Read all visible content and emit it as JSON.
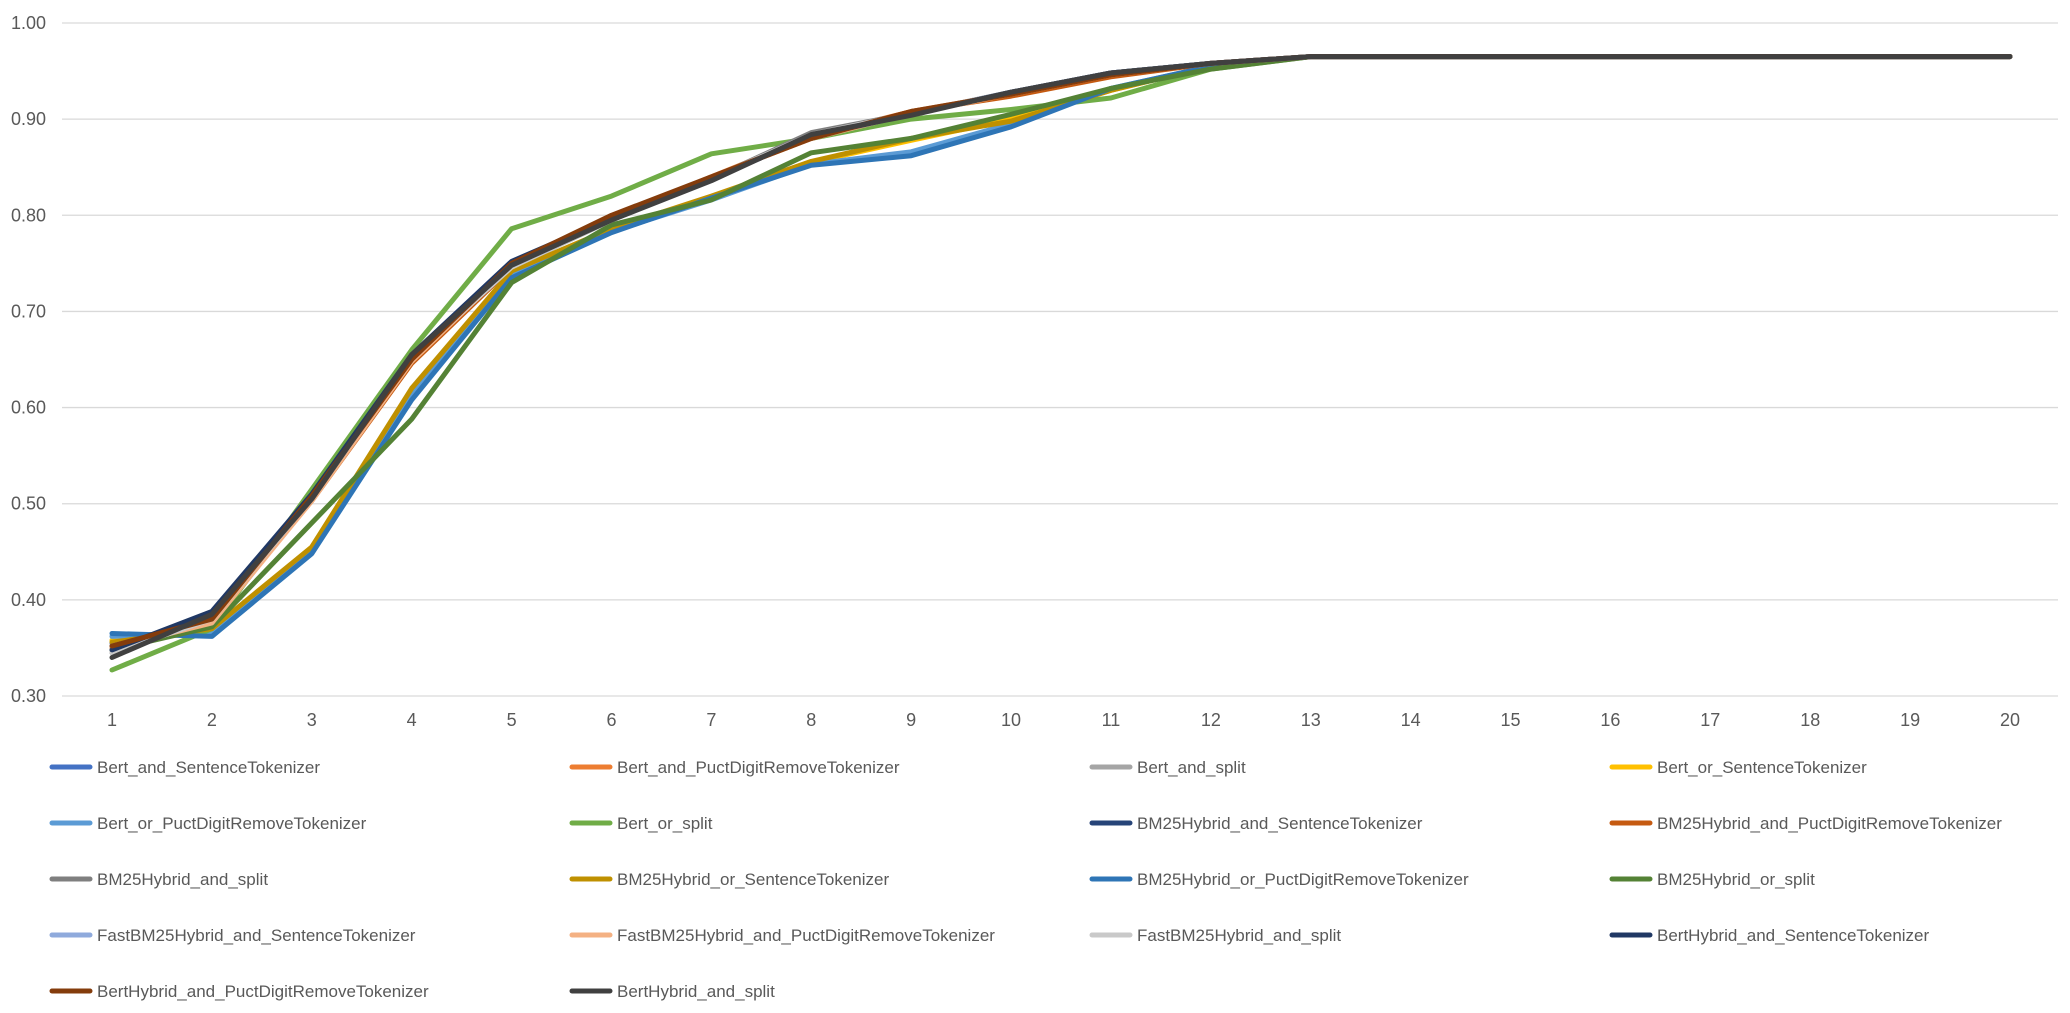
{
  "chart_data": {
    "type": "line",
    "title": "",
    "xlabel": "",
    "ylabel": "",
    "x": [
      1,
      2,
      3,
      4,
      5,
      6,
      7,
      8,
      9,
      10,
      11,
      12,
      13,
      14,
      15,
      16,
      17,
      18,
      19,
      20
    ],
    "x_tick_labels": [
      "1",
      "2",
      "3",
      "4",
      "5",
      "6",
      "7",
      "8",
      "9",
      "10",
      "11",
      "12",
      "13",
      "14",
      "15",
      "16",
      "17",
      "18",
      "19",
      "20"
    ],
    "ylim": [
      0.3,
      1.0
    ],
    "y_tick_labels": [
      "0.30",
      "0.40",
      "0.50",
      "0.60",
      "0.70",
      "0.80",
      "0.90",
      "1.00"
    ],
    "y_ticks": [
      0.3,
      0.4,
      0.5,
      0.6,
      0.7,
      0.8,
      0.9,
      1.0
    ],
    "grid": true,
    "legend_position": "bottom",
    "series": [
      {
        "name": "Bert_and_SentenceTokenizer",
        "color": "#4472C4",
        "values": [
          0.355,
          0.375,
          0.505,
          0.648,
          0.748,
          0.795,
          0.838,
          0.882,
          0.905,
          0.928,
          0.948,
          0.958,
          0.965,
          0.965,
          0.965,
          0.965,
          0.965,
          0.965,
          0.965,
          0.965
        ]
      },
      {
        "name": "Bert_and_PuctDigitRemoveTokenizer",
        "color": "#ED7D31",
        "values": [
          0.35,
          0.378,
          0.505,
          0.65,
          0.75,
          0.797,
          0.84,
          0.882,
          0.908,
          0.926,
          0.946,
          0.958,
          0.965,
          0.965,
          0.965,
          0.965,
          0.965,
          0.965,
          0.965,
          0.965
        ]
      },
      {
        "name": "Bert_and_split",
        "color": "#A5A5A5",
        "values": [
          0.345,
          0.38,
          0.508,
          0.652,
          0.746,
          0.795,
          0.838,
          0.884,
          0.906,
          0.928,
          0.948,
          0.958,
          0.965,
          0.965,
          0.965,
          0.965,
          0.965,
          0.965,
          0.965,
          0.965
        ]
      },
      {
        "name": "Bert_or_SentenceTokenizer",
        "color": "#FFC000",
        "values": [
          0.358,
          0.368,
          0.455,
          0.615,
          0.74,
          0.785,
          0.818,
          0.855,
          0.878,
          0.9,
          0.93,
          0.955,
          0.965,
          0.965,
          0.965,
          0.965,
          0.965,
          0.965,
          0.965,
          0.965
        ]
      },
      {
        "name": "Bert_or_PuctDigitRemoveTokenizer",
        "color": "#5B9BD5",
        "values": [
          0.362,
          0.365,
          0.452,
          0.612,
          0.738,
          0.783,
          0.816,
          0.853,
          0.866,
          0.895,
          0.932,
          0.955,
          0.965,
          0.965,
          0.965,
          0.965,
          0.965,
          0.965,
          0.965,
          0.965
        ]
      },
      {
        "name": "Bert_or_split",
        "color": "#70AD47",
        "values": [
          0.327,
          0.37,
          0.515,
          0.66,
          0.786,
          0.82,
          0.864,
          0.88,
          0.9,
          0.91,
          0.922,
          0.952,
          0.965,
          0.965,
          0.965,
          0.965,
          0.965,
          0.965,
          0.965,
          0.965
        ]
      },
      {
        "name": "BM25Hybrid_and_SentenceTokenizer",
        "color": "#264478",
        "values": [
          0.35,
          0.38,
          0.505,
          0.652,
          0.75,
          0.797,
          0.838,
          0.882,
          0.905,
          0.928,
          0.948,
          0.958,
          0.965,
          0.965,
          0.965,
          0.965,
          0.965,
          0.965,
          0.965,
          0.965
        ]
      },
      {
        "name": "BM25Hybrid_and_PuctDigitRemoveTokenizer",
        "color": "#C55A11",
        "values": [
          0.352,
          0.378,
          0.503,
          0.646,
          0.746,
          0.797,
          0.84,
          0.88,
          0.908,
          0.924,
          0.944,
          0.958,
          0.965,
          0.965,
          0.965,
          0.965,
          0.965,
          0.965,
          0.965,
          0.965
        ]
      },
      {
        "name": "BM25Hybrid_and_split",
        "color": "#7F7F7F",
        "values": [
          0.345,
          0.38,
          0.505,
          0.652,
          0.746,
          0.795,
          0.838,
          0.886,
          0.906,
          0.928,
          0.948,
          0.958,
          0.965,
          0.965,
          0.965,
          0.965,
          0.965,
          0.965,
          0.965,
          0.965
        ]
      },
      {
        "name": "BM25Hybrid_or_SentenceTokenizer",
        "color": "#BF9000",
        "values": [
          0.356,
          0.37,
          0.455,
          0.62,
          0.742,
          0.786,
          0.82,
          0.856,
          0.88,
          0.898,
          0.93,
          0.955,
          0.965,
          0.965,
          0.965,
          0.965,
          0.965,
          0.965,
          0.965,
          0.965
        ]
      },
      {
        "name": "BM25Hybrid_or_PuctDigitRemoveTokenizer",
        "color": "#2E75B6",
        "values": [
          0.365,
          0.362,
          0.448,
          0.608,
          0.735,
          0.782,
          0.818,
          0.852,
          0.862,
          0.892,
          0.932,
          0.955,
          0.965,
          0.965,
          0.965,
          0.965,
          0.965,
          0.965,
          0.965,
          0.965
        ]
      },
      {
        "name": "BM25Hybrid_or_split",
        "color": "#548235",
        "values": [
          0.348,
          0.372,
          0.48,
          0.588,
          0.73,
          0.79,
          0.816,
          0.865,
          0.88,
          0.905,
          0.932,
          0.952,
          0.965,
          0.965,
          0.965,
          0.965,
          0.965,
          0.965,
          0.965,
          0.965
        ]
      },
      {
        "name": "FastBM25Hybrid_and_SentenceTokenizer",
        "color": "#8FAADC",
        "values": [
          0.352,
          0.378,
          0.505,
          0.65,
          0.748,
          0.796,
          0.838,
          0.882,
          0.905,
          0.928,
          0.948,
          0.958,
          0.965,
          0.965,
          0.965,
          0.965,
          0.965,
          0.965,
          0.965,
          0.965
        ]
      },
      {
        "name": "FastBM25Hybrid_and_PuctDigitRemoveTokenizer",
        "color": "#F4B183",
        "values": [
          0.35,
          0.376,
          0.503,
          0.648,
          0.748,
          0.796,
          0.84,
          0.88,
          0.906,
          0.926,
          0.946,
          0.958,
          0.965,
          0.965,
          0.965,
          0.965,
          0.965,
          0.965,
          0.965,
          0.965
        ]
      },
      {
        "name": "FastBM25Hybrid_and_split",
        "color": "#C9C9C9",
        "values": [
          0.345,
          0.38,
          0.506,
          0.652,
          0.746,
          0.795,
          0.838,
          0.884,
          0.906,
          0.928,
          0.948,
          0.958,
          0.965,
          0.965,
          0.965,
          0.965,
          0.965,
          0.965,
          0.965,
          0.965
        ]
      },
      {
        "name": "BertHybrid_and_SentenceTokenizer",
        "color": "#203864",
        "values": [
          0.348,
          0.388,
          0.51,
          0.655,
          0.752,
          0.797,
          0.838,
          0.882,
          0.905,
          0.928,
          0.948,
          0.958,
          0.965,
          0.965,
          0.965,
          0.965,
          0.965,
          0.965,
          0.965,
          0.965
        ]
      },
      {
        "name": "BertHybrid_and_PuctDigitRemoveTokenizer",
        "color": "#843C0C",
        "values": [
          0.352,
          0.38,
          0.508,
          0.65,
          0.75,
          0.8,
          0.84,
          0.88,
          0.908,
          0.926,
          0.946,
          0.958,
          0.965,
          0.965,
          0.965,
          0.965,
          0.965,
          0.965,
          0.965,
          0.965
        ]
      },
      {
        "name": "BertHybrid_and_split",
        "color": "#404040",
        "values": [
          0.34,
          0.385,
          0.505,
          0.655,
          0.748,
          0.795,
          0.836,
          0.884,
          0.904,
          0.928,
          0.948,
          0.958,
          0.965,
          0.965,
          0.965,
          0.965,
          0.965,
          0.965,
          0.965,
          0.965
        ]
      }
    ]
  }
}
